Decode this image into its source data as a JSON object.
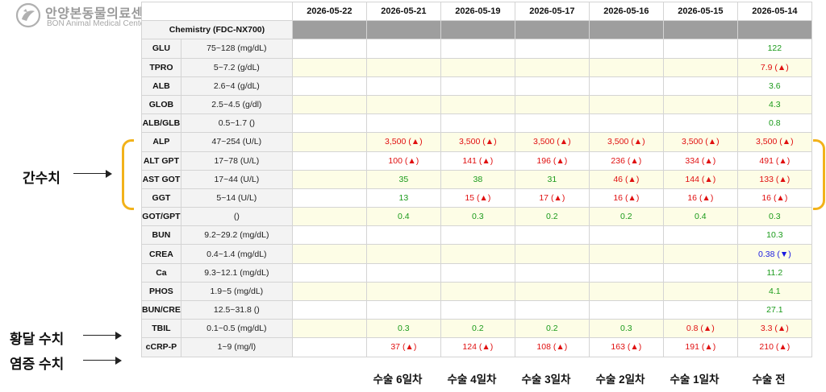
{
  "logo": {
    "korean": "안양본동물의료센터",
    "english": "BON Animal Medical Center",
    "icon": "hospital-logo-icon"
  },
  "table": {
    "panel_label": "Chemistry (FDC-NX700)",
    "dates": [
      "2026-05-22",
      "2026-05-21",
      "2026-05-19",
      "2026-05-17",
      "2026-05-16",
      "2026-05-15",
      "2026-05-14"
    ],
    "rows": [
      {
        "name": "GLU",
        "ref": "75~128 (mg/dL)",
        "values": [
          "",
          "",
          "",
          "",
          "",
          "",
          {
            "t": "122",
            "c": "green"
          }
        ]
      },
      {
        "name": "TPRO",
        "ref": "5~7.2 (g/dL)",
        "values": [
          "",
          "",
          "",
          "",
          "",
          "",
          {
            "t": "7.9 (▲)",
            "c": "red"
          }
        ]
      },
      {
        "name": "ALB",
        "ref": "2.6~4 (g/dL)",
        "values": [
          "",
          "",
          "",
          "",
          "",
          "",
          {
            "t": "3.6",
            "c": "green"
          }
        ]
      },
      {
        "name": "GLOB",
        "ref": "2.5~4.5 (g/dl)",
        "values": [
          "",
          "",
          "",
          "",
          "",
          "",
          {
            "t": "4.3",
            "c": "green"
          }
        ]
      },
      {
        "name": "ALB/GLB",
        "ref": "0.5~1.7 ()",
        "values": [
          "",
          "",
          "",
          "",
          "",
          "",
          {
            "t": "0.8",
            "c": "green"
          }
        ]
      },
      {
        "name": "ALP",
        "ref": "47~254 (U/L)",
        "values": [
          "",
          {
            "t": "3,500 (▲)",
            "c": "red"
          },
          {
            "t": "3,500 (▲)",
            "c": "red"
          },
          {
            "t": "3,500 (▲)",
            "c": "red"
          },
          {
            "t": "3,500 (▲)",
            "c": "red"
          },
          {
            "t": "3,500 (▲)",
            "c": "red"
          },
          {
            "t": "3,500 (▲)",
            "c": "red"
          }
        ]
      },
      {
        "name": "ALT GPT",
        "ref": "17~78 (U/L)",
        "values": [
          "",
          {
            "t": "100 (▲)",
            "c": "red"
          },
          {
            "t": "141 (▲)",
            "c": "red"
          },
          {
            "t": "196 (▲)",
            "c": "red"
          },
          {
            "t": "236 (▲)",
            "c": "red"
          },
          {
            "t": "334 (▲)",
            "c": "red"
          },
          {
            "t": "491 (▲)",
            "c": "red"
          }
        ]
      },
      {
        "name": "AST GOT",
        "ref": "17~44 (U/L)",
        "values": [
          "",
          {
            "t": "35",
            "c": "green"
          },
          {
            "t": "38",
            "c": "green"
          },
          {
            "t": "31",
            "c": "green"
          },
          {
            "t": "46 (▲)",
            "c": "red"
          },
          {
            "t": "144 (▲)",
            "c": "red"
          },
          {
            "t": "133 (▲)",
            "c": "red"
          }
        ]
      },
      {
        "name": "GGT",
        "ref": "5~14 (U/L)",
        "values": [
          "",
          {
            "t": "13",
            "c": "green"
          },
          {
            "t": "15 (▲)",
            "c": "red"
          },
          {
            "t": "17 (▲)",
            "c": "red"
          },
          {
            "t": "16 (▲)",
            "c": "red"
          },
          {
            "t": "16 (▲)",
            "c": "red"
          },
          {
            "t": "16 (▲)",
            "c": "red"
          }
        ]
      },
      {
        "name": "GOT/GPT",
        "ref": "()",
        "values": [
          "",
          {
            "t": "0.4",
            "c": "green"
          },
          {
            "t": "0.3",
            "c": "green"
          },
          {
            "t": "0.2",
            "c": "green"
          },
          {
            "t": "0.2",
            "c": "green"
          },
          {
            "t": "0.4",
            "c": "green"
          },
          {
            "t": "0.3",
            "c": "green"
          }
        ]
      },
      {
        "name": "BUN",
        "ref": "9.2~29.2 (mg/dL)",
        "values": [
          "",
          "",
          "",
          "",
          "",
          "",
          {
            "t": "10.3",
            "c": "green"
          }
        ]
      },
      {
        "name": "CREA",
        "ref": "0.4~1.4 (mg/dL)",
        "values": [
          "",
          "",
          "",
          "",
          "",
          "",
          {
            "t": "0.38 (▼)",
            "c": "blue"
          }
        ]
      },
      {
        "name": "Ca",
        "ref": "9.3~12.1 (mg/dL)",
        "values": [
          "",
          "",
          "",
          "",
          "",
          "",
          {
            "t": "11.2",
            "c": "green"
          }
        ]
      },
      {
        "name": "PHOS",
        "ref": "1.9~5 (mg/dL)",
        "values": [
          "",
          "",
          "",
          "",
          "",
          "",
          {
            "t": "4.1",
            "c": "green"
          }
        ]
      },
      {
        "name": "BUN/CRE",
        "ref": "12.5~31.8 ()",
        "values": [
          "",
          "",
          "",
          "",
          "",
          "",
          {
            "t": "27.1",
            "c": "green"
          }
        ]
      },
      {
        "name": "TBIL",
        "ref": "0.1~0.5 (mg/dL)",
        "values": [
          "",
          {
            "t": "0.3",
            "c": "green"
          },
          {
            "t": "0.2",
            "c": "green"
          },
          {
            "t": "0.2",
            "c": "green"
          },
          {
            "t": "0.3",
            "c": "green"
          },
          {
            "t": "0.8 (▲)",
            "c": "red"
          },
          {
            "t": "3.3 (▲)",
            "c": "red"
          }
        ]
      },
      {
        "name": "cCRP-P",
        "ref": "1~9 (mg/l)",
        "values": [
          "",
          {
            "t": "37 (▲)",
            "c": "red"
          },
          {
            "t": "124 (▲)",
            "c": "red"
          },
          {
            "t": "108 (▲)",
            "c": "red"
          },
          {
            "t": "163 (▲)",
            "c": "red"
          },
          {
            "t": "191 (▲)",
            "c": "red"
          },
          {
            "t": "210 (▲)",
            "c": "red"
          }
        ]
      }
    ]
  },
  "annotations": {
    "liver": "간수치",
    "jaundice": "황달 수치",
    "inflammation": "염증 수치"
  },
  "footer_labels": [
    "수술 6일차",
    "수술 4일차",
    "수술 3일차",
    "수술 2일차",
    "수술 1일차",
    "수술 전"
  ],
  "colors": {
    "normal": "#1a9a1a",
    "high": "#e01010",
    "low": "#1a1ae0",
    "brace": "#f2b21a",
    "alt_row": "#fdfde6"
  }
}
